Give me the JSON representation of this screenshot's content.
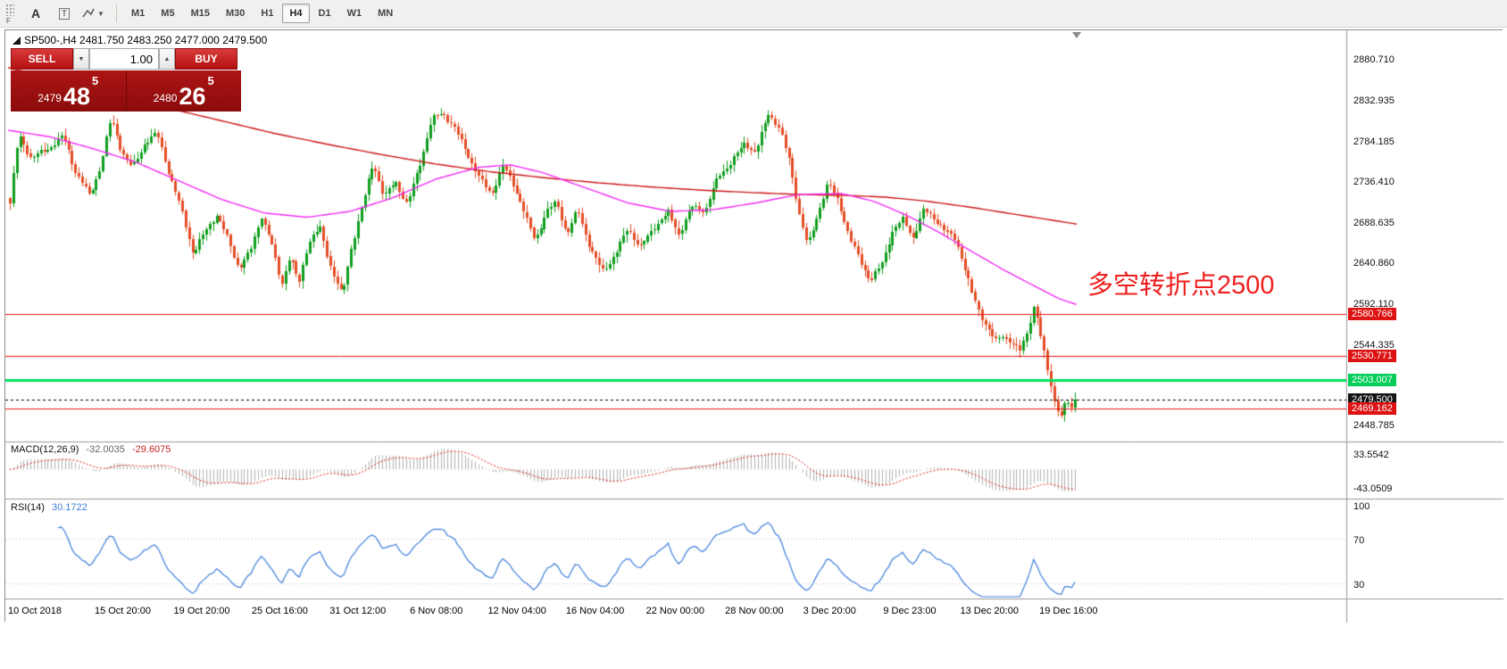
{
  "toolbar": {
    "handle_label": "F",
    "tool_a_label": "A",
    "tool_t_label": "T",
    "timeframes": [
      "M1",
      "M5",
      "M15",
      "M30",
      "H1",
      "H4",
      "D1",
      "W1",
      "MN"
    ],
    "active_timeframe": "H4"
  },
  "chart": {
    "symbol_info": "SP500-,H4 2481.750 2483.250 2477.000 2479.500",
    "annotation": "多空转折点2500",
    "trade_panel": {
      "sell_label": "SELL",
      "buy_label": "BUY",
      "volume": "1.00",
      "bid_small": "2479",
      "bid_big": "48",
      "bid_sup": "5",
      "ask_small": "2480",
      "ask_big": "26",
      "ask_sup": "5"
    },
    "scale": {
      "pmax": 2916,
      "pmin": 2431
    },
    "axis": {
      "ticks": [
        "2880.710",
        "2832.935",
        "2784.185",
        "2736.410",
        "2688.635",
        "2640.860",
        "2592.110",
        "2544.335",
        "2448.785"
      ],
      "badges": [
        {
          "label": "2580.766",
          "price": 2580.766,
          "bg": "#dd1212",
          "fg": "#ffffff"
        },
        {
          "label": "2530.771",
          "price": 2530.771,
          "bg": "#dd1212",
          "fg": "#ffffff"
        },
        {
          "label": "2503.007",
          "price": 2503.007,
          "bg": "#00ce58",
          "fg": "#ffffff"
        },
        {
          "label": "2479.500",
          "price": 2479.5,
          "bg": "#141414",
          "fg": "#ffffff"
        },
        {
          "label": "2469.162",
          "price": 2469.162,
          "bg": "#dd1212",
          "fg": "#ffffff"
        }
      ]
    },
    "levels": [
      {
        "price": 2580.766,
        "color": "#e81414",
        "width": 1,
        "dash": []
      },
      {
        "price": 2530.771,
        "color": "#e81414",
        "width": 1,
        "dash": []
      },
      {
        "price": 2503.007,
        "color": "#00e05e",
        "width": 3,
        "dash": []
      },
      {
        "price": 2479.5,
        "color": "#000000",
        "width": 1,
        "dash": [
          3,
          3
        ]
      },
      {
        "price": 2469.162,
        "color": "#e81414",
        "width": 1,
        "dash": []
      }
    ],
    "time_labels": [
      {
        "label": "10 Oct 2018",
        "f": 0.0
      },
      {
        "label": "15 Oct 20:00",
        "f": 0.081
      },
      {
        "label": "19 Oct 20:00",
        "f": 0.155
      },
      {
        "label": "25 Oct 16:00",
        "f": 0.228
      },
      {
        "label": "31 Oct 12:00",
        "f": 0.301
      },
      {
        "label": "6 Nov 08:00",
        "f": 0.376
      },
      {
        "label": "12 Nov 04:00",
        "f": 0.449
      },
      {
        "label": "16 Nov 04:00",
        "f": 0.522
      },
      {
        "label": "22 Nov 00:00",
        "f": 0.597
      },
      {
        "label": "28 Nov 00:00",
        "f": 0.671
      },
      {
        "label": "3 Dec 20:00",
        "f": 0.744
      },
      {
        "label": "9 Dec 23:00",
        "f": 0.819
      },
      {
        "label": "13 Dec 20:00",
        "f": 0.891
      },
      {
        "label": "19 Dec 16:00",
        "f": 0.965
      }
    ]
  },
  "indicators": {
    "macd": {
      "label": "MACD(12,26,9)",
      "value_main": "-32.0035",
      "value_signal": "-29.6075",
      "scale_top": "33.5542",
      "scale_bottom": "-43.0509"
    },
    "rsi": {
      "label": "RSI(14)",
      "value": "30.1722",
      "levels": [
        100,
        70,
        30
      ]
    }
  },
  "chart_data": {
    "type": "candlestick",
    "symbol": "SP500-",
    "timeframe": "H4",
    "n_candles": 310,
    "last_close": 2479.5,
    "price_waypoints": [
      [
        0.0,
        2712
      ],
      [
        0.008,
        2790
      ],
      [
        0.02,
        2762
      ],
      [
        0.035,
        2776
      ],
      [
        0.05,
        2794
      ],
      [
        0.062,
        2748
      ],
      [
        0.075,
        2718
      ],
      [
        0.085,
        2752
      ],
      [
        0.095,
        2812
      ],
      [
        0.105,
        2775
      ],
      [
        0.115,
        2756
      ],
      [
        0.127,
        2784
      ],
      [
        0.138,
        2792
      ],
      [
        0.15,
        2742
      ],
      [
        0.162,
        2700
      ],
      [
        0.172,
        2655
      ],
      [
        0.183,
        2680
      ],
      [
        0.194,
        2698
      ],
      [
        0.205,
        2665
      ],
      [
        0.215,
        2632
      ],
      [
        0.226,
        2656
      ],
      [
        0.236,
        2700
      ],
      [
        0.246,
        2664
      ],
      [
        0.255,
        2616
      ],
      [
        0.263,
        2648
      ],
      [
        0.271,
        2612
      ],
      [
        0.28,
        2663
      ],
      [
        0.291,
        2683
      ],
      [
        0.301,
        2640
      ],
      [
        0.312,
        2604
      ],
      [
        0.321,
        2662
      ],
      [
        0.333,
        2716
      ],
      [
        0.341,
        2758
      ],
      [
        0.351,
        2718
      ],
      [
        0.362,
        2740
      ],
      [
        0.373,
        2712
      ],
      [
        0.386,
        2762
      ],
      [
        0.396,
        2808
      ],
      [
        0.406,
        2816
      ],
      [
        0.418,
        2800
      ],
      [
        0.43,
        2772
      ],
      [
        0.441,
        2742
      ],
      [
        0.452,
        2722
      ],
      [
        0.463,
        2753
      ],
      [
        0.473,
        2732
      ],
      [
        0.483,
        2700
      ],
      [
        0.493,
        2670
      ],
      [
        0.503,
        2703
      ],
      [
        0.513,
        2713
      ],
      [
        0.523,
        2672
      ],
      [
        0.533,
        2701
      ],
      [
        0.545,
        2658
      ],
      [
        0.556,
        2634
      ],
      [
        0.568,
        2653
      ],
      [
        0.58,
        2681
      ],
      [
        0.592,
        2656
      ],
      [
        0.605,
        2683
      ],
      [
        0.618,
        2703
      ],
      [
        0.628,
        2678
      ],
      [
        0.64,
        2707
      ],
      [
        0.653,
        2701
      ],
      [
        0.665,
        2741
      ],
      [
        0.678,
        2763
      ],
      [
        0.69,
        2786
      ],
      [
        0.7,
        2773
      ],
      [
        0.712,
        2816
      ],
      [
        0.722,
        2798
      ],
      [
        0.732,
        2760
      ],
      [
        0.741,
        2700
      ],
      [
        0.749,
        2663
      ],
      [
        0.758,
        2701
      ],
      [
        0.768,
        2736
      ],
      [
        0.778,
        2711
      ],
      [
        0.788,
        2668
      ],
      [
        0.798,
        2643
      ],
      [
        0.808,
        2622
      ],
      [
        0.818,
        2641
      ],
      [
        0.828,
        2679
      ],
      [
        0.838,
        2691
      ],
      [
        0.848,
        2669
      ],
      [
        0.858,
        2701
      ],
      [
        0.868,
        2695
      ],
      [
        0.878,
        2681
      ],
      [
        0.888,
        2672
      ],
      [
        0.895,
        2641
      ],
      [
        0.902,
        2607
      ],
      [
        0.91,
        2581
      ],
      [
        0.918,
        2561
      ],
      [
        0.925,
        2546
      ],
      [
        0.932,
        2557
      ],
      [
        0.94,
        2549
      ],
      [
        0.948,
        2539
      ],
      [
        0.955,
        2562
      ],
      [
        0.962,
        2592
      ],
      [
        0.968,
        2549
      ],
      [
        0.975,
        2508
      ],
      [
        0.981,
        2474
      ],
      [
        0.987,
        2456
      ],
      [
        0.992,
        2480
      ],
      [
        0.996,
        2468
      ],
      [
        1.0,
        2479.5
      ]
    ],
    "ma_red": [
      [
        0.0,
        2872
      ],
      [
        0.05,
        2856
      ],
      [
        0.1,
        2840
      ],
      [
        0.15,
        2824
      ],
      [
        0.2,
        2809
      ],
      [
        0.25,
        2794
      ],
      [
        0.3,
        2781
      ],
      [
        0.35,
        2769
      ],
      [
        0.4,
        2758
      ],
      [
        0.45,
        2749
      ],
      [
        0.5,
        2742
      ],
      [
        0.55,
        2736
      ],
      [
        0.6,
        2731
      ],
      [
        0.65,
        2727
      ],
      [
        0.7,
        2724
      ],
      [
        0.74,
        2722
      ],
      [
        0.78,
        2721
      ],
      [
        0.82,
        2719
      ],
      [
        0.86,
        2714
      ],
      [
        0.9,
        2707
      ],
      [
        0.95,
        2697
      ],
      [
        1.0,
        2687
      ]
    ],
    "ma_magenta": [
      [
        0.0,
        2798
      ],
      [
        0.04,
        2790
      ],
      [
        0.08,
        2776
      ],
      [
        0.12,
        2760
      ],
      [
        0.16,
        2738
      ],
      [
        0.2,
        2716
      ],
      [
        0.24,
        2700
      ],
      [
        0.28,
        2695
      ],
      [
        0.32,
        2702
      ],
      [
        0.36,
        2718
      ],
      [
        0.4,
        2740
      ],
      [
        0.44,
        2754
      ],
      [
        0.47,
        2757
      ],
      [
        0.5,
        2748
      ],
      [
        0.54,
        2730
      ],
      [
        0.58,
        2712
      ],
      [
        0.62,
        2702
      ],
      [
        0.66,
        2704
      ],
      [
        0.7,
        2712
      ],
      [
        0.74,
        2722
      ],
      [
        0.78,
        2723
      ],
      [
        0.81,
        2714
      ],
      [
        0.84,
        2698
      ],
      [
        0.87,
        2678
      ],
      [
        0.9,
        2656
      ],
      [
        0.93,
        2634
      ],
      [
        0.96,
        2614
      ],
      [
        0.985,
        2598
      ],
      [
        1.0,
        2592
      ]
    ]
  },
  "colors": {
    "candle_up": "#0f9e1e",
    "candle_down": "#e44d26",
    "ma_red": "#cc1616",
    "ma_magenta": "#f22cf2",
    "macd_hist": "#b2b2b2",
    "macd_signal": "#dd2020",
    "rsi_line": "#3d7edb",
    "rsi_levels": "#b8b8cc"
  }
}
